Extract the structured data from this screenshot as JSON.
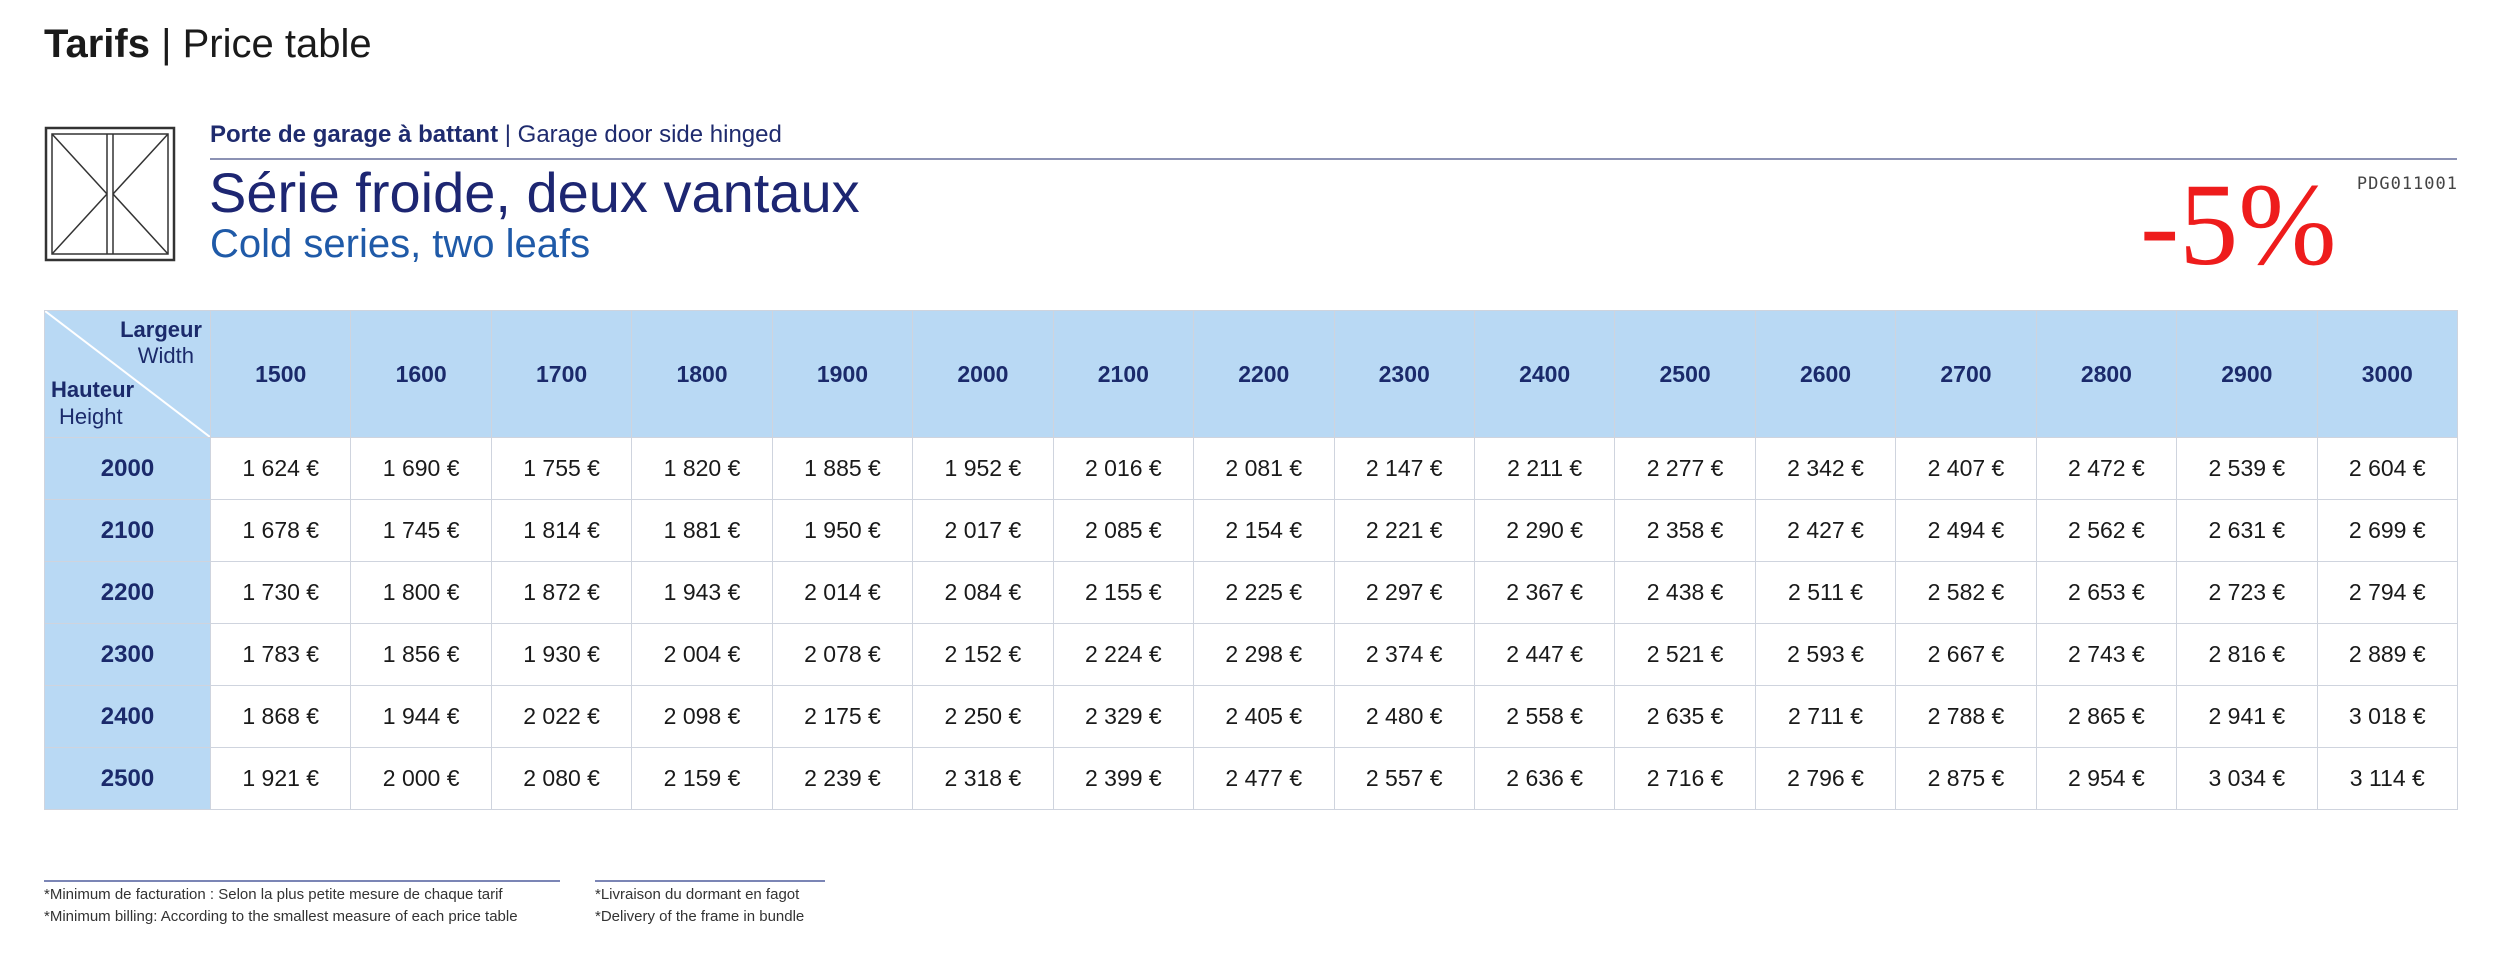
{
  "header": {
    "title_bold": "Tarifs",
    "title_sep": "|",
    "title_sub": "Price table"
  },
  "product": {
    "category_fr": "Porte de garage à battant",
    "category_sep": "|",
    "category_en": "Garage door side hinged",
    "series_fr": "Série froide, deux vantaux",
    "series_en": "Cold series, two leafs",
    "ref": "PDG011001",
    "discount": "-5%",
    "icon": "double-door-icon"
  },
  "table": {
    "corner": {
      "width_fr": "Largeur",
      "width_en": "Width",
      "height_fr": "Hauteur",
      "height_en": "Height"
    },
    "widths": [
      "1500",
      "1600",
      "1700",
      "1800",
      "1900",
      "2000",
      "2100",
      "2200",
      "2300",
      "2400",
      "2500",
      "2600",
      "2700",
      "2800",
      "2900",
      "3000"
    ],
    "rows": [
      {
        "height": "2000",
        "prices": [
          "1 624 €",
          "1 690 €",
          "1 755 €",
          "1 820 €",
          "1 885 €",
          "1 952 €",
          "2 016 €",
          "2 081 €",
          "2 147 €",
          "2 211 €",
          "2 277 €",
          "2 342 €",
          "2 407 €",
          "2 472 €",
          "2 539 €",
          "2 604 €"
        ]
      },
      {
        "height": "2100",
        "prices": [
          "1 678 €",
          "1 745 €",
          "1 814 €",
          "1 881 €",
          "1 950 €",
          "2 017 €",
          "2 085 €",
          "2 154 €",
          "2 221 €",
          "2 290 €",
          "2 358 €",
          "2 427 €",
          "2 494 €",
          "2 562 €",
          "2 631 €",
          "2 699 €"
        ]
      },
      {
        "height": "2200",
        "prices": [
          "1 730 €",
          "1 800 €",
          "1 872 €",
          "1 943 €",
          "2 014 €",
          "2 084 €",
          "2 155 €",
          "2 225 €",
          "2 297 €",
          "2 367 €",
          "2 438 €",
          "2 511 €",
          "2 582 €",
          "2 653 €",
          "2 723 €",
          "2 794 €"
        ]
      },
      {
        "height": "2300",
        "prices": [
          "1 783 €",
          "1 856 €",
          "1 930 €",
          "2 004 €",
          "2 078 €",
          "2 152 €",
          "2 224 €",
          "2 298 €",
          "2 374 €",
          "2 447 €",
          "2 521 €",
          "2 593 €",
          "2 667 €",
          "2 743 €",
          "2 816 €",
          "2 889 €"
        ]
      },
      {
        "height": "2400",
        "prices": [
          "1 868 €",
          "1 944 €",
          "2 022 €",
          "2 098 €",
          "2 175 €",
          "2 250 €",
          "2 329 €",
          "2 405 €",
          "2 480 €",
          "2 558 €",
          "2 635 €",
          "2 711 €",
          "2 788 €",
          "2 865 €",
          "2 941 €",
          "3 018 €"
        ]
      },
      {
        "height": "2500",
        "prices": [
          "1 921 €",
          "2 000 €",
          "2 080 €",
          "2 159 €",
          "2 239 €",
          "2 318 €",
          "2 399 €",
          "2 477 €",
          "2 557 €",
          "2 636 €",
          "2 716 €",
          "2 796 €",
          "2 875 €",
          "2 954 €",
          "3 034 €",
          "3 114 €"
        ]
      }
    ]
  },
  "notes": [
    {
      "fr": "*Minimum de facturation : Selon la plus petite mesure de chaque tarif",
      "en": "*Minimum billing: According to the smallest measure of each price table"
    },
    {
      "fr": "*Livraison du dormant en fagot",
      "en": "*Delivery of the frame in bundle"
    }
  ],
  "colors": {
    "header_bg": "#b9d9f4",
    "discount": "#ee1c1c",
    "navy": "#1d2672",
    "blue": "#1f5aa8"
  }
}
